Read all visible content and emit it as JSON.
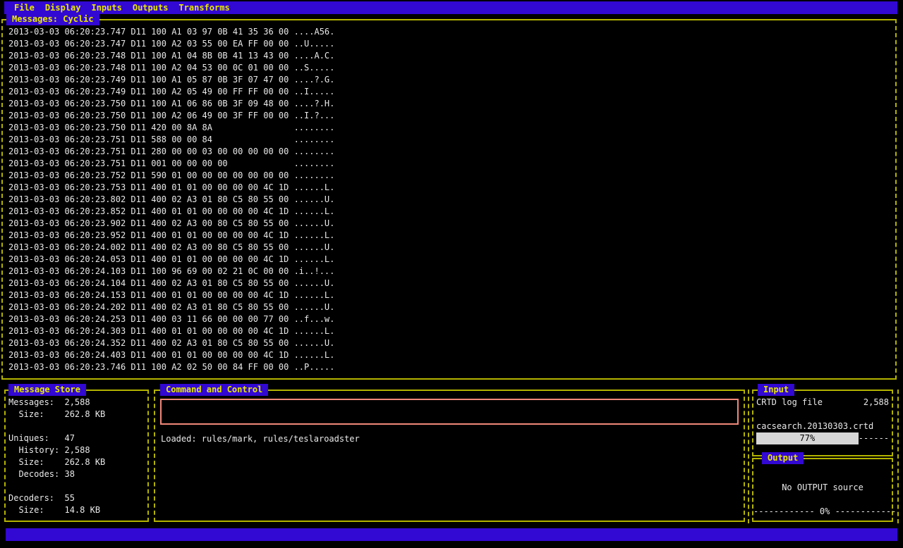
{
  "colors": {
    "accent_blue": "#3208d3",
    "border_yellow": "#b3b300",
    "title_yellow": "#e9e900",
    "text_white": "#e9e9e9",
    "command_box_red": "#f08878",
    "progress_gray": "#d6d6d6"
  },
  "menu": {
    "items": [
      "File",
      "Display",
      "Inputs",
      "Outputs",
      "Transforms"
    ]
  },
  "messages_panel": {
    "title": "Messages: Cyclic",
    "lines": [
      "2013-03-03 06:20:23.747 D11 100 A1 03 97 0B 41 35 36 00 ....A56.",
      "2013-03-03 06:20:23.747 D11 100 A2 03 55 00 EA FF 00 00 ..U.....",
      "2013-03-03 06:20:23.748 D11 100 A1 04 8B 0B 41 13 43 00 ....A.C.",
      "2013-03-03 06:20:23.748 D11 100 A2 04 53 00 0C 01 00 00 ..S.....",
      "2013-03-03 06:20:23.749 D11 100 A1 05 87 0B 3F 07 47 00 ....?.G.",
      "2013-03-03 06:20:23.749 D11 100 A2 05 49 00 FF FF 00 00 ..I.....",
      "2013-03-03 06:20:23.750 D11 100 A1 06 86 0B 3F 09 48 00 ....?.H.",
      "2013-03-03 06:20:23.750 D11 100 A2 06 49 00 3F FF 00 00 ..I.?...",
      "2013-03-03 06:20:23.750 D11 420 00 8A 8A                ........",
      "2013-03-03 06:20:23.751 D11 588 00 00 84                ........",
      "2013-03-03 06:20:23.751 D11 280 00 00 03 00 00 00 00 00 ........",
      "2013-03-03 06:20:23.751 D11 001 00 00 00 00             ........",
      "2013-03-03 06:20:23.752 D11 590 01 00 00 00 00 00 00 00 ........",
      "2013-03-03 06:20:23.753 D11 400 01 01 00 00 00 00 4C 1D ......L.",
      "2013-03-03 06:20:23.802 D11 400 02 A3 01 80 C5 80 55 00 ......U.",
      "2013-03-03 06:20:23.852 D11 400 01 01 00 00 00 00 4C 1D ......L.",
      "2013-03-03 06:20:23.902 D11 400 02 A3 00 80 C5 80 55 00 ......U.",
      "2013-03-03 06:20:23.952 D11 400 01 01 00 00 00 00 4C 1D ......L.",
      "2013-03-03 06:20:24.002 D11 400 02 A3 00 80 C5 80 55 00 ......U.",
      "2013-03-03 06:20:24.053 D11 400 01 01 00 00 00 00 4C 1D ......L.",
      "2013-03-03 06:20:24.103 D11 100 96 69 00 02 21 0C 00 00 .i..!...",
      "2013-03-03 06:20:24.104 D11 400 02 A3 01 80 C5 80 55 00 ......U.",
      "2013-03-03 06:20:24.153 D11 400 01 01 00 00 00 00 4C 1D ......L.",
      "2013-03-03 06:20:24.202 D11 400 02 A3 01 80 C5 80 55 00 ......U.",
      "2013-03-03 06:20:24.253 D11 400 03 11 66 00 00 00 77 00 ..f...w.",
      "2013-03-03 06:20:24.303 D11 400 01 01 00 00 00 00 4C 1D ......L.",
      "2013-03-03 06:20:24.352 D11 400 02 A3 01 80 C5 80 55 00 ......U.",
      "2013-03-03 06:20:24.403 D11 400 01 01 00 00 00 00 4C 1D ......L.",
      "2013-03-03 06:20:23.746 D11 100 A2 02 50 00 84 FF 00 00 ..P....."
    ]
  },
  "message_store": {
    "title": "Message Store",
    "lines": [
      "Messages:  2,588",
      "  Size:    262.8 KB",
      "",
      "Uniques:   47",
      "  History: 2,588",
      "  Size:    262.8 KB",
      "  Decodes: 38",
      "",
      "Decoders:  55",
      "  Size:    14.8 KB"
    ]
  },
  "command_control": {
    "title": "Command and Control",
    "command_value": "",
    "loaded_text": "Loaded: rules/mark, rules/teslaroadster"
  },
  "input_panel": {
    "title": "Input",
    "source_label": "CRTD log file",
    "count": "2,588",
    "filename": "cacsearch.20130303.crtd",
    "progress_label": "77%",
    "progress_value": 77,
    "trailing_dashes": "------"
  },
  "output_panel": {
    "title": "Output",
    "status": "No OUTPUT source",
    "progress_line": "------------ 0% ------------"
  }
}
